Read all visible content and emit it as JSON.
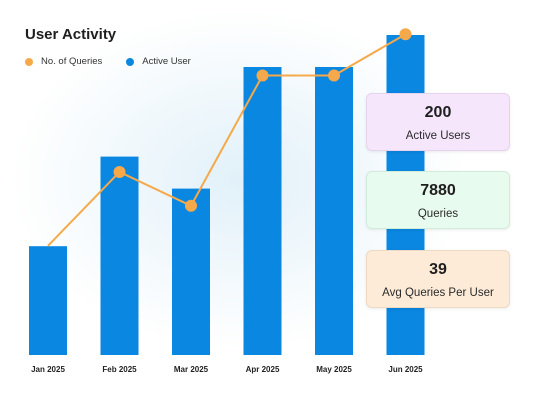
{
  "title": "User Activity",
  "legend": [
    {
      "label": "No. of Queries",
      "color": "#f6a94a"
    },
    {
      "label": "Active User",
      "color": "#0a87e0"
    }
  ],
  "colors": {
    "bar": "#0a87e0",
    "line": "#f6a94a"
  },
  "chart_data": {
    "type": "bar",
    "title": "User Activity",
    "categories": [
      "Jan 2025",
      "Feb 2025",
      "Mar 2025",
      "Apr 2025",
      "May 2025",
      "Jun 2025"
    ],
    "series": [
      {
        "name": "Active User",
        "type": "bar",
        "values": [
          17,
          31,
          26,
          45,
          45,
          50
        ]
      },
      {
        "name": "No. of Queries",
        "type": "line",
        "values": [
          880,
          1470,
          1200,
          2240,
          2240,
          2570
        ]
      }
    ],
    "legend_position": "top-left",
    "grid": false,
    "xlabel": "",
    "ylabel": ""
  },
  "cards": [
    {
      "value": "200",
      "label": "Active Users"
    },
    {
      "value": "7880",
      "label": "Queries"
    },
    {
      "value": "39",
      "label": "Avg Queries Per User"
    }
  ]
}
